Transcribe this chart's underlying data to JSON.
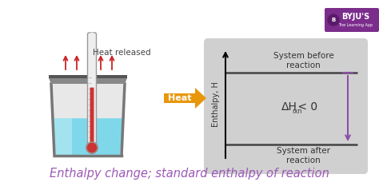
{
  "title": "Enthalpy change; standard enthalpy of reaction",
  "title_color": "#9b59b6",
  "title_fontsize": 10.5,
  "bg_color": "#ffffff",
  "diagram_bg": "#d0d0d0",
  "heat_arrow_color": "#e8960a",
  "heat_text": "Heat",
  "heat_text_color": "#e8960a",
  "heat_released_text": "Heat released",
  "heat_released_color": "#444444",
  "enthalpy_label": "Enthalpy, H",
  "system_before": "System before\nreaction",
  "system_after": "System after\nreaction",
  "delta_h_main": "ΔH",
  "delta_h_sub": "rxn",
  "delta_h_rest": " < 0",
  "arrow_color": "#8b4fa8",
  "line_color": "#444444",
  "red_arrows_color": "#cc2222",
  "therm_liquid_color": "#cc3333",
  "therm_tube_color": "#eeeeee",
  "therm_border_color": "#999999",
  "beaker_liquid_color": "#7fd8ea",
  "beaker_liquid_light": "#c5eef5",
  "beaker_wall_color": "#c0c0c0",
  "beaker_rim_color": "#888888",
  "beaker_rim_top": "#666666",
  "byju_purple": "#7b2d8b",
  "byju_text": "BYJU'S",
  "byju_sub": "The Learning App"
}
